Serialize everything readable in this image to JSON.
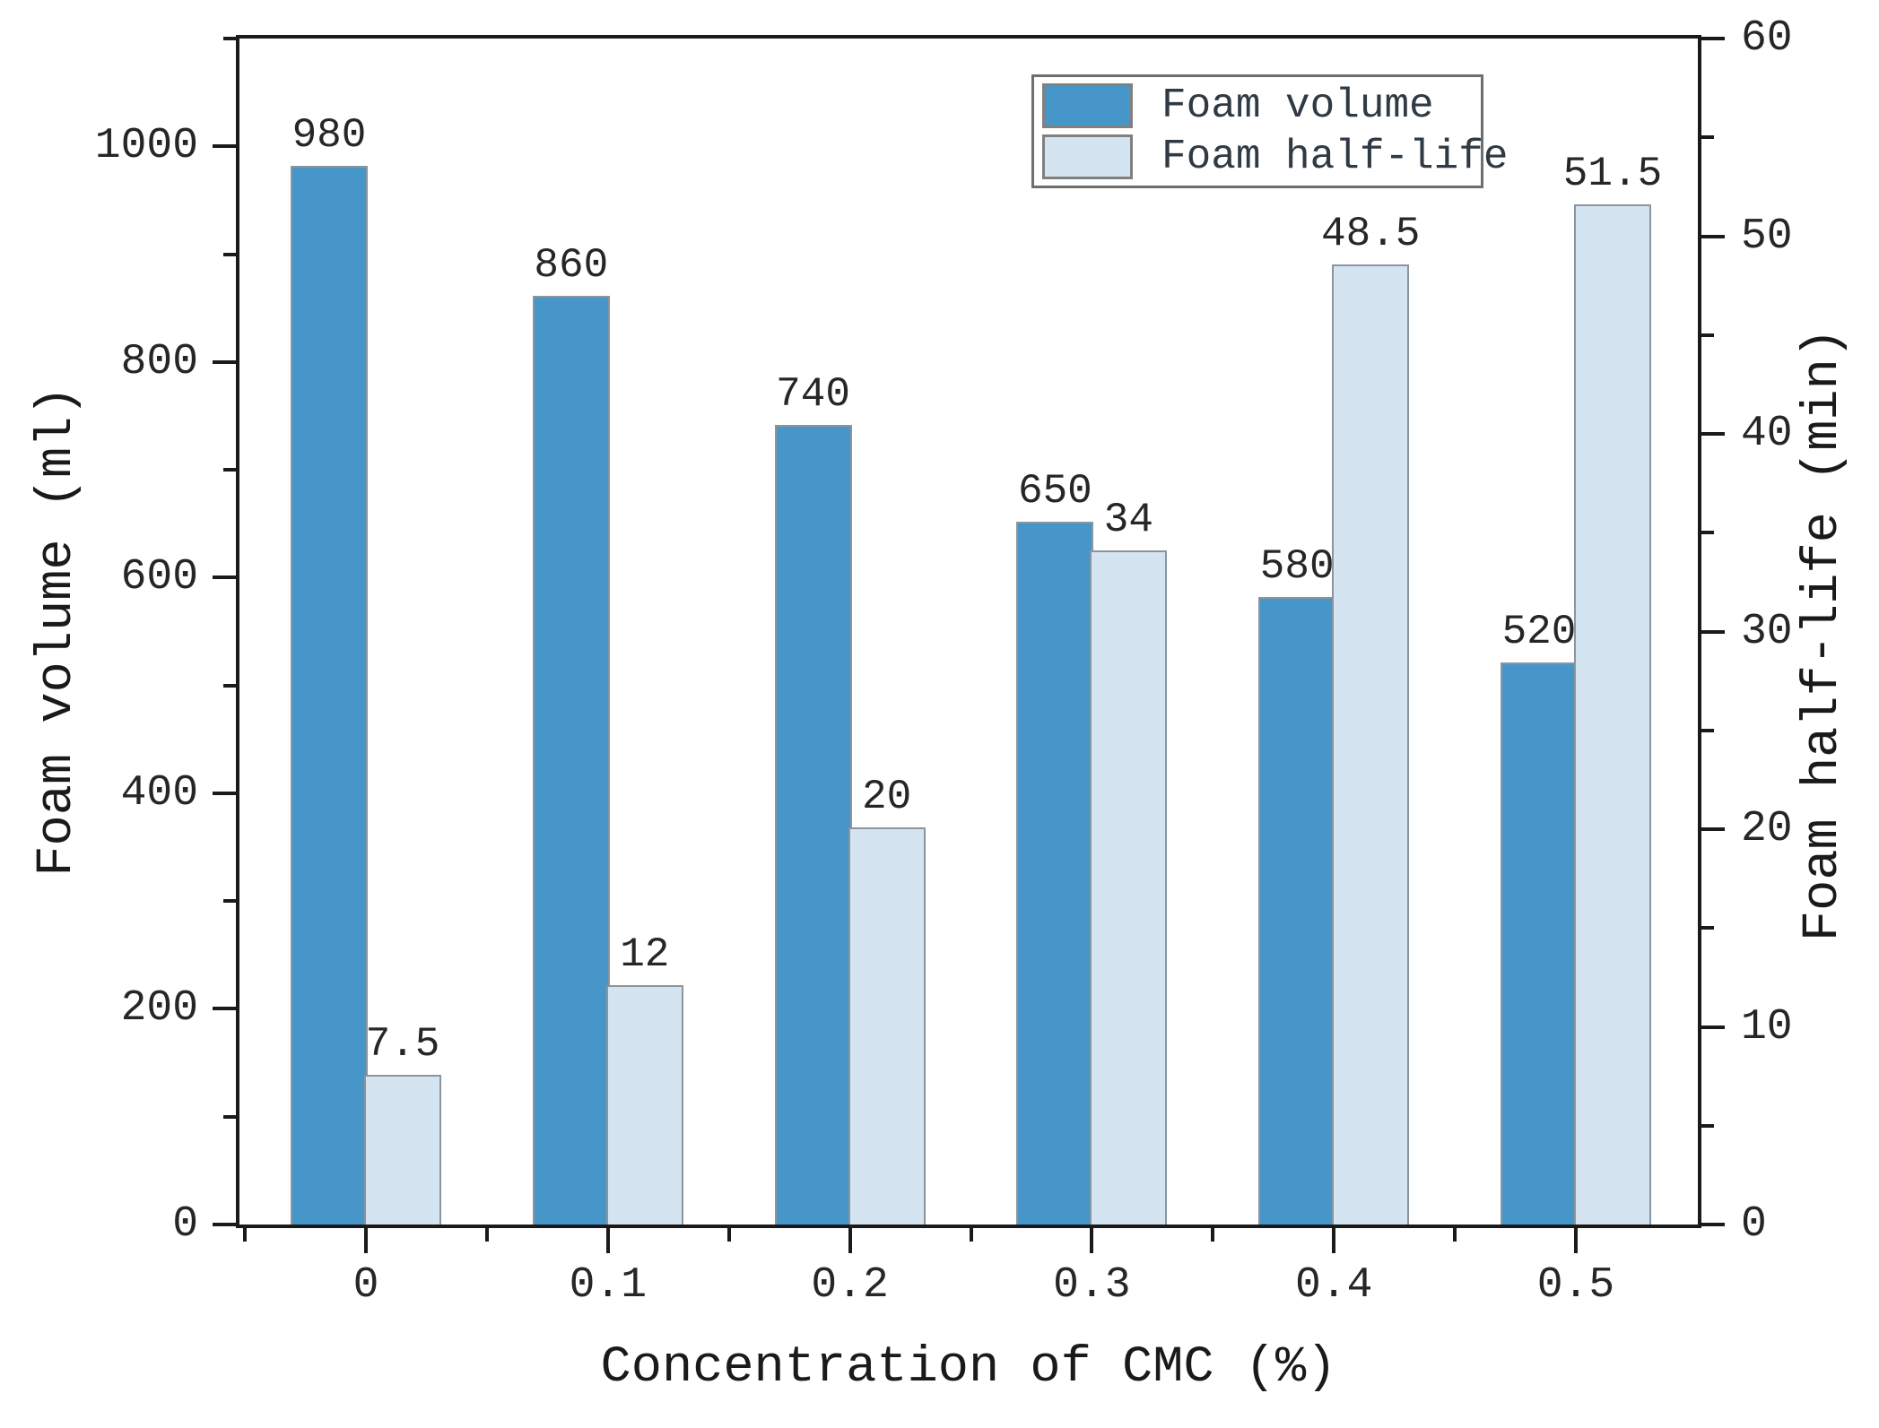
{
  "chart_data": {
    "type": "bar",
    "title": "",
    "xlabel": "Concentration of CMC (%)",
    "ylabel_left": "Foam volume (ml)",
    "ylabel_right": "Foam half-life (min)",
    "categories": [
      "0",
      "0.1",
      "0.2",
      "0.3",
      "0.4",
      "0.5"
    ],
    "series": [
      {
        "name": "Foam volume",
        "axis": "left",
        "color": "#4796C9",
        "values": [
          980,
          860,
          740,
          650,
          580,
          520
        ],
        "labels": [
          "980",
          "860",
          "740",
          "650",
          "580",
          "520"
        ]
      },
      {
        "name": "Foam half-life",
        "axis": "right",
        "color": "#D4E4F1",
        "values": [
          7.5,
          12,
          20,
          34,
          48.5,
          51.5
        ],
        "labels": [
          "7.5",
          "12",
          "20",
          "34",
          "48.5",
          "51.5"
        ]
      }
    ],
    "axes": {
      "left": {
        "lim": [
          0,
          1100
        ],
        "major_ticks": [
          0,
          200,
          400,
          600,
          800,
          1000
        ],
        "minor_ticks": [
          100,
          300,
          500,
          700,
          900,
          1100
        ],
        "major_labels": [
          "0",
          "200",
          "400",
          "600",
          "800",
          "1000"
        ]
      },
      "right": {
        "lim": [
          0,
          60
        ],
        "major_ticks": [
          0,
          10,
          20,
          30,
          40,
          50,
          60
        ],
        "minor_ticks": [
          5,
          15,
          25,
          35,
          45,
          55
        ],
        "major_labels": [
          "0",
          "10",
          "20",
          "30",
          "40",
          "50",
          "60"
        ]
      },
      "x": {
        "minor_between_categories": true
      }
    },
    "legend": {
      "position": "upper-right-inside",
      "entries": [
        "Foam volume",
        "Foam half-life"
      ]
    },
    "grid": false,
    "colors": {
      "bar_fill_volume": "#4796C9",
      "bar_fill_half_life": "#D4E4F1",
      "bar_edge": "#8B959D",
      "axis": "#1a1a1a",
      "text": "#262626"
    }
  }
}
